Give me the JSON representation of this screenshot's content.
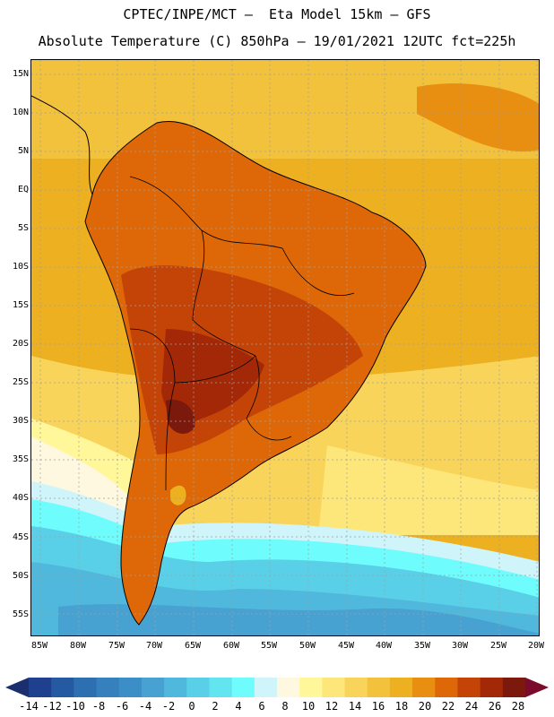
{
  "header": {
    "line1": "CPTEC/INPE/MCT –  Eta Model 15km – GFS",
    "line2": "Absolute Temperature (C) 850hPa – 19/01/2021 12UTC fct=225h"
  },
  "latitudes": [
    "15N",
    "10N",
    "5N",
    "EQ",
    "5S",
    "10S",
    "15S",
    "20S",
    "25S",
    "30S",
    "35S",
    "40S",
    "45S",
    "50S",
    "55S"
  ],
  "longitudes": [
    "85W",
    "80W",
    "75W",
    "70W",
    "65W",
    "60W",
    "55W",
    "50W",
    "45W",
    "40W",
    "35W",
    "30W",
    "25W",
    "20W"
  ],
  "colorbar": {
    "labels": [
      "-14",
      "-12",
      "-10",
      "-8",
      "-6",
      "-4",
      "-2",
      "0",
      "2",
      "4",
      "6",
      "8",
      "10",
      "12",
      "14",
      "16",
      "18",
      "20",
      "22",
      "24",
      "26",
      "28"
    ],
    "colors": [
      "#1f3f8f",
      "#255aa3",
      "#2d6fb1",
      "#3580bd",
      "#3c8ec7",
      "#47a2d2",
      "#4fb8dc",
      "#5ad0e8",
      "#63e5f0",
      "#6ffcfc",
      "#cff5fb",
      "#fff8e0",
      "#fff79a",
      "#fde67a",
      "#f9d45a",
      "#f2c23d",
      "#ecb020",
      "#e88e10",
      "#de6808",
      "#c44408",
      "#a22808",
      "#7b1a0c"
    ],
    "under_color": "#1b2e6e",
    "over_color": "#7a0b2a"
  }
}
